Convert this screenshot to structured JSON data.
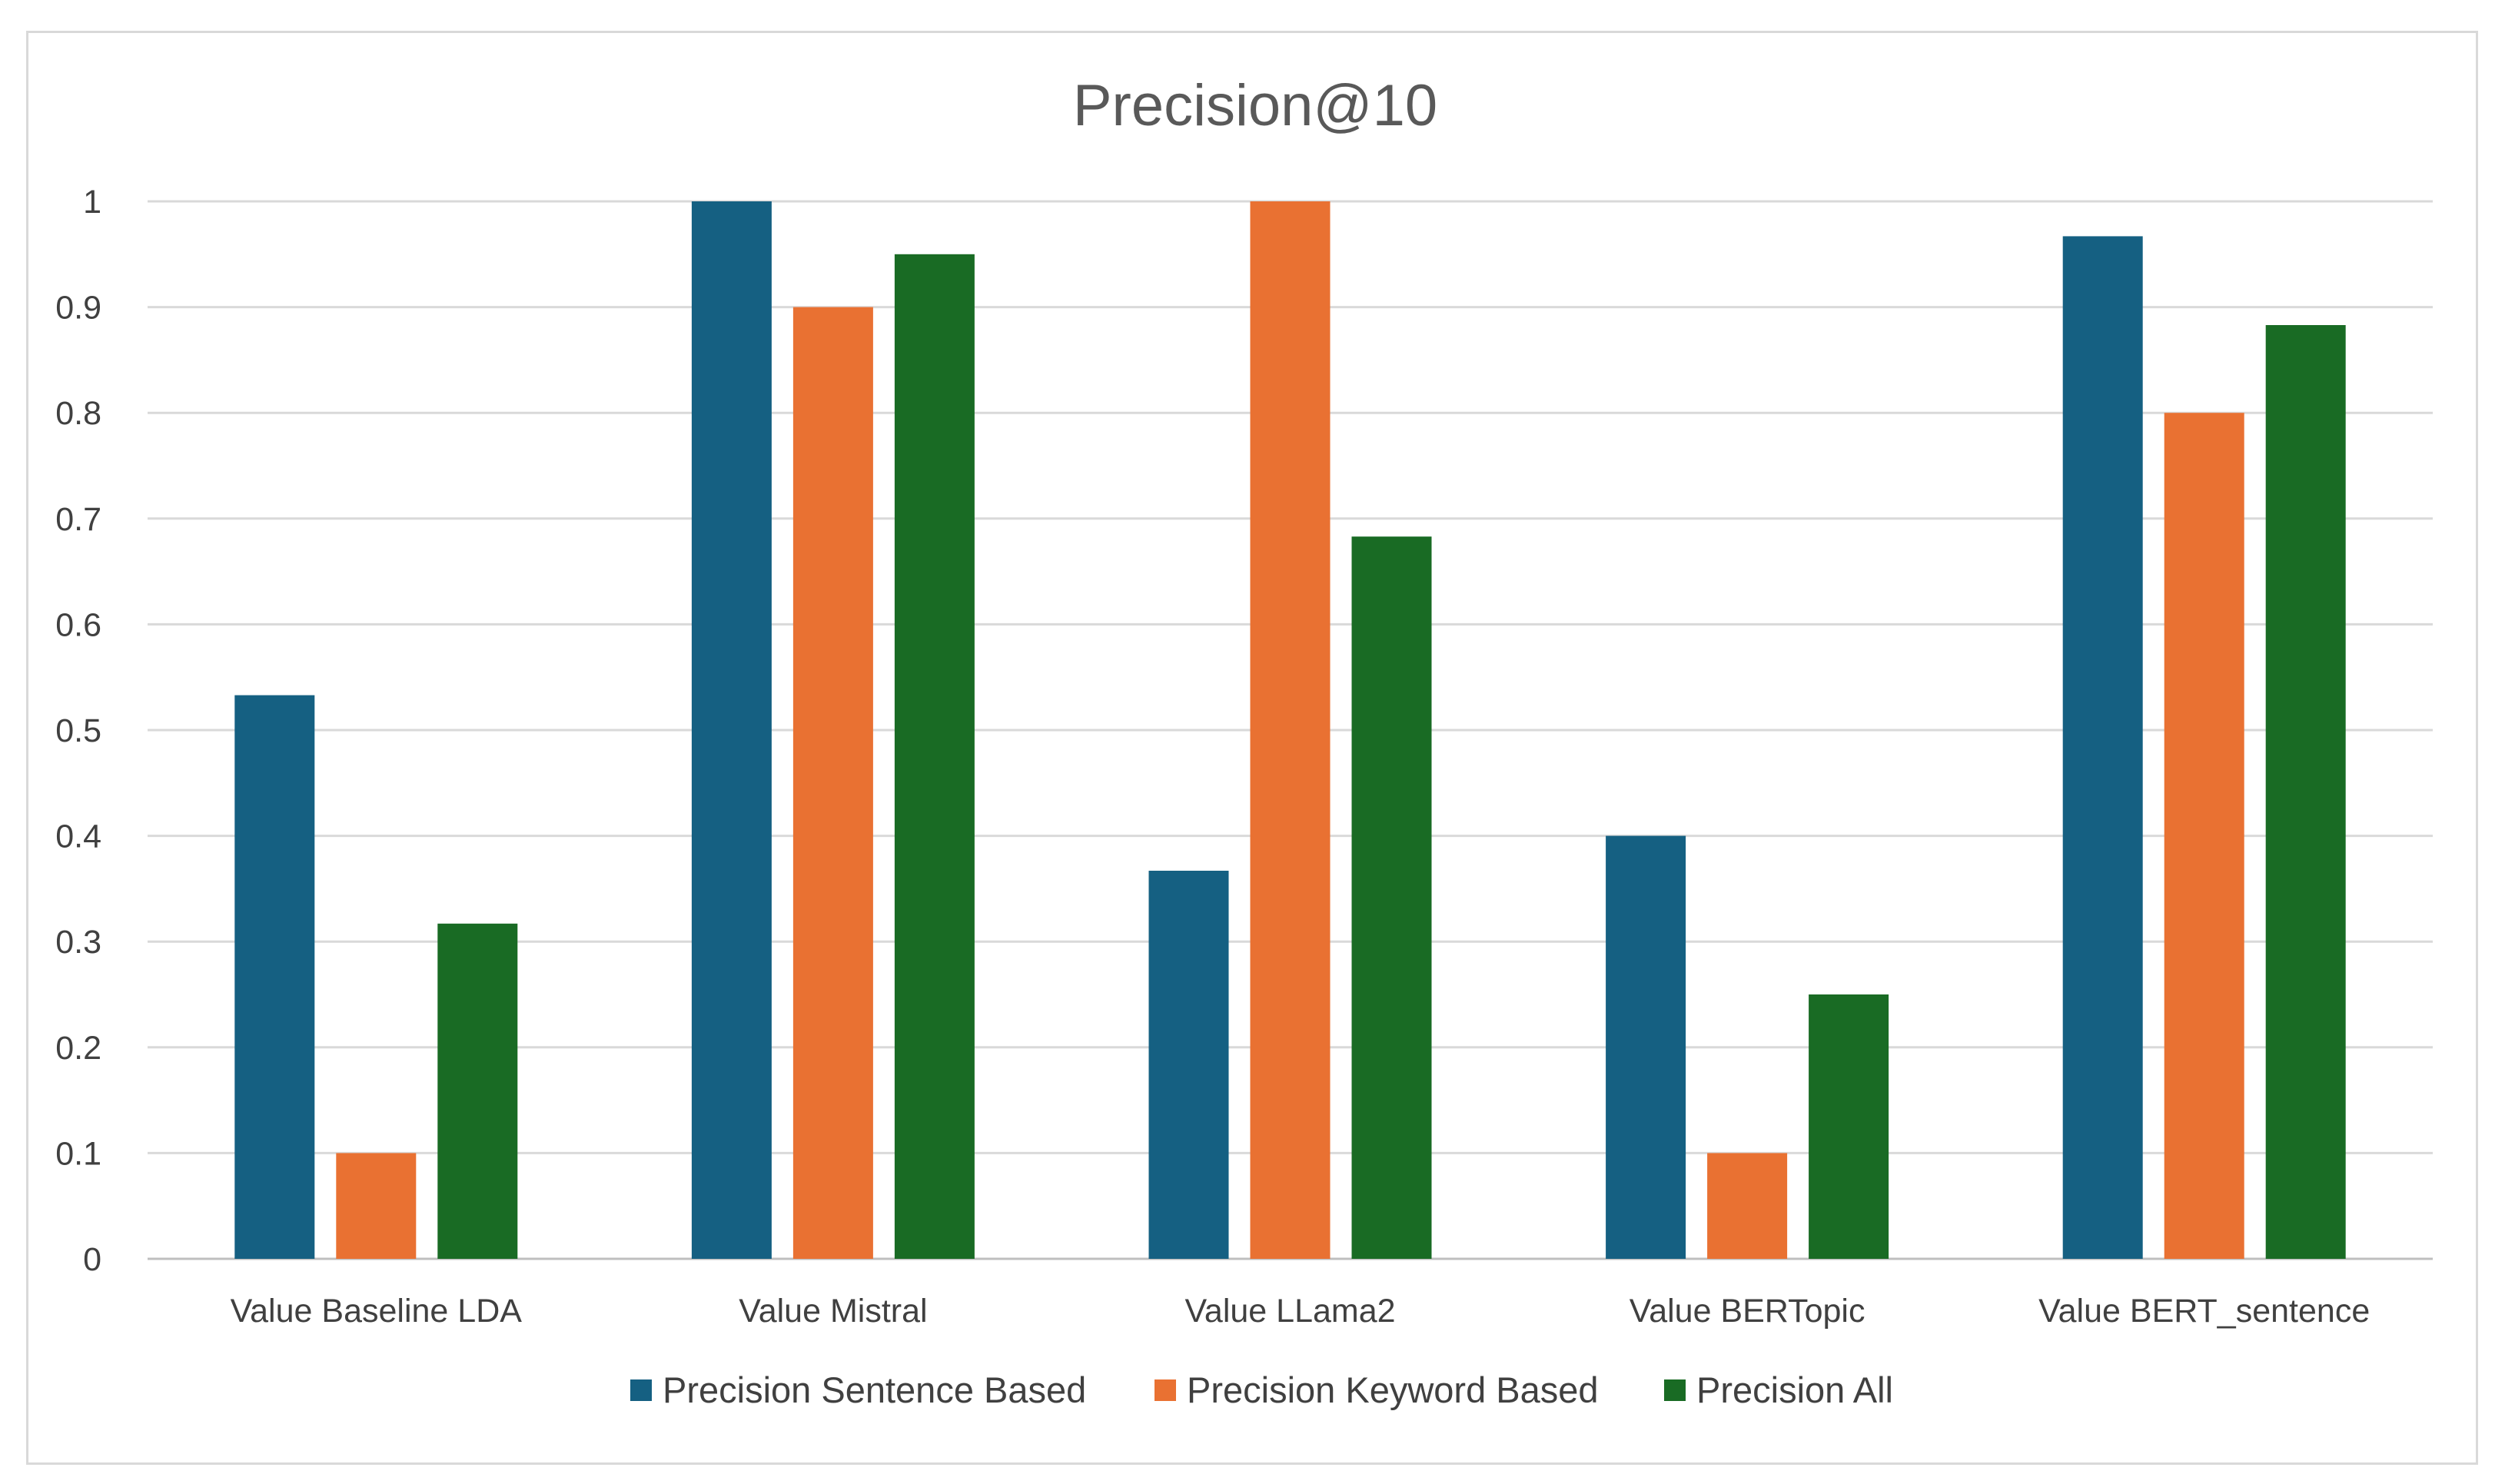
{
  "chart_data": {
    "type": "bar",
    "title": "Precision@10",
    "xlabel": "",
    "ylabel": "",
    "ylim": [
      0,
      1
    ],
    "yticks": [
      "0",
      "0.1",
      "0.2",
      "0.3",
      "0.4",
      "0.5",
      "0.6",
      "0.7",
      "0.8",
      "0.9",
      "1"
    ],
    "categories": [
      "Value Baseline LDA",
      "Value Mistral",
      "Value LLama2",
      "Value BERTopic",
      "Value BERT_sentence"
    ],
    "series": [
      {
        "name": "Precision Sentence Based",
        "color": "#156082",
        "values": [
          0.533,
          1.0,
          0.367,
          0.4,
          0.967
        ]
      },
      {
        "name": "Precision Keyword Based",
        "color": "#E97132",
        "values": [
          0.1,
          0.9,
          1.0,
          0.1,
          0.8
        ]
      },
      {
        "name": "Precision All",
        "color": "#196B24",
        "values": [
          0.317,
          0.95,
          0.683,
          0.25,
          0.883
        ]
      }
    ],
    "grid": true,
    "legend": "bottom"
  }
}
